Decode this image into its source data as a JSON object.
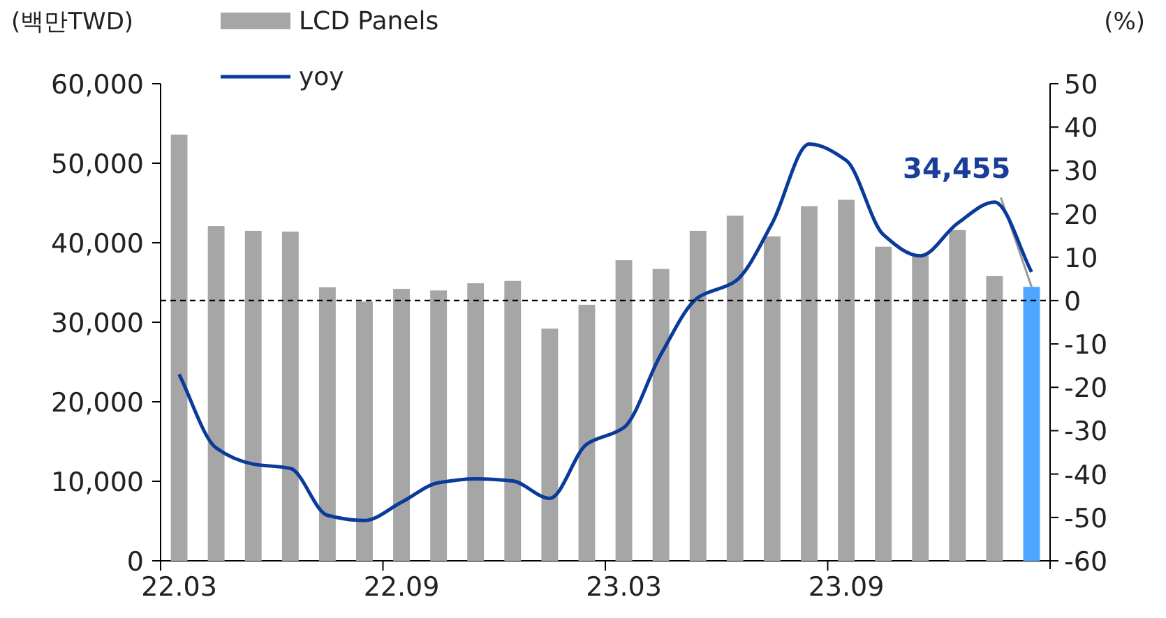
{
  "chart_data": {
    "type": "bar",
    "ylabel": "(백만TWD)",
    "y2label": "(%)",
    "categories": [
      "22.03",
      null,
      null,
      null,
      null,
      null,
      "22.09",
      null,
      null,
      null,
      null,
      null,
      "23.03",
      null,
      null,
      null,
      null,
      null,
      "23.09",
      null,
      null,
      null,
      null,
      null
    ],
    "ylim": [
      0,
      60000
    ],
    "yticks": [
      {
        "value": 0,
        "label": "0"
      },
      {
        "value": 10000,
        "label": "10,000"
      },
      {
        "value": 20000,
        "label": "20,000"
      },
      {
        "value": 30000,
        "label": "30,000"
      },
      {
        "value": 40000,
        "label": "40,000"
      },
      {
        "value": 50000,
        "label": "50,000"
      },
      {
        "value": 60000,
        "label": "60,000"
      }
    ],
    "y2lim": [
      -60,
      50
    ],
    "y2ticks": [
      -60,
      -50,
      -40,
      -30,
      -20,
      -10,
      0,
      10,
      20,
      30,
      40,
      50
    ],
    "series": [
      {
        "name": "LCD Panels",
        "color": "#a6a6a6",
        "colors": [
          "#a6a6a6",
          "#a6a6a6",
          "#a6a6a6",
          "#a6a6a6",
          "#a6a6a6",
          "#a6a6a6",
          "#a6a6a6",
          "#a6a6a6",
          "#a6a6a6",
          "#a6a6a6",
          "#a6a6a6",
          "#a6a6a6",
          "#a6a6a6",
          "#a6a6a6",
          "#a6a6a6",
          "#a6a6a6",
          "#a6a6a6",
          "#a6a6a6",
          "#a6a6a6",
          "#a6a6a6",
          "#a6a6a6",
          "#a6a6a6",
          "#a6a6a6",
          "#4da6ff"
        ],
        "values": [
          53600,
          42100,
          41500,
          41400,
          34400,
          32600,
          34200,
          34000,
          34900,
          35200,
          29200,
          32200,
          37800,
          36700,
          41500,
          43400,
          40800,
          44600,
          45400,
          39500,
          38400,
          41600,
          35800,
          34455
        ],
        "value_labels": [
          null,
          null,
          null,
          null,
          null,
          null,
          null,
          null,
          null,
          null,
          null,
          null,
          null,
          null,
          null,
          null,
          null,
          null,
          null,
          null,
          null,
          null,
          null,
          "34,455"
        ]
      },
      {
        "name": "yoy",
        "type": "line",
        "axis": "y2",
        "color": "#0a3a9a",
        "values": [
          -17,
          -34,
          -37.7,
          -38.7,
          -49.5,
          -50.7,
          -46.5,
          -42,
          -41.1,
          -41.6,
          -45.6,
          -33.1,
          -29.3,
          -12.4,
          0.7,
          4.4,
          17.8,
          36.1,
          32.3,
          15.2,
          10.3,
          17.8,
          22.7,
          6.6
        ]
      }
    ],
    "ref_lines": [
      {
        "axis": "y2",
        "value": 0,
        "color": "#000000",
        "line_style": "dashed"
      }
    ],
    "legend": "top left",
    "grid": false
  }
}
